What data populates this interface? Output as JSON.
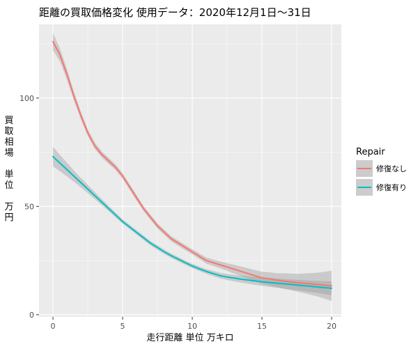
{
  "chart_data": {
    "type": "line",
    "title": "距離の買取価格変化 使用データ：2020年12月1日～31日",
    "xlabel": "走行距離 単位 万キロ",
    "ylabel_lines": [
      "買",
      "取",
      "相",
      "場",
      "",
      "単",
      "位",
      "",
      "万",
      "円"
    ],
    "xlim": [
      -1,
      20.7
    ],
    "ylim": [
      -1,
      134
    ],
    "x_ticks": [
      0,
      5,
      10,
      15,
      20
    ],
    "x_tick_labels": [
      "0",
      "5",
      "10",
      "15",
      "20"
    ],
    "y_ticks": [
      0,
      50,
      100
    ],
    "y_tick_labels": [
      "0",
      "50",
      "100"
    ],
    "grid": true,
    "legend": {
      "title": "Repair",
      "placement": "right"
    },
    "series": [
      {
        "name": "修復なし",
        "color": "#F8766D",
        "x": [
          0,
          0.5,
          1,
          1.5,
          2,
          2.5,
          3,
          3.5,
          4,
          4.5,
          5,
          5.5,
          6,
          6.5,
          7,
          7.5,
          8,
          8.5,
          9,
          9.5,
          10,
          10.5,
          11,
          11.5,
          12,
          12.5,
          13,
          13.5,
          14,
          14.5,
          15,
          15.5,
          16,
          16.5,
          17,
          17.5,
          18,
          18.5,
          19,
          19.5,
          20
        ],
        "y": [
          126,
          120,
          111,
          101,
          92,
          84,
          78,
          74,
          71,
          68,
          64,
          59,
          54,
          49,
          45,
          41,
          38,
          35,
          33,
          31,
          29,
          27,
          25,
          24,
          23,
          22,
          21,
          20,
          19,
          18,
          17,
          16.6,
          16,
          15.6,
          15.2,
          14.8,
          14.5,
          14.2,
          13.9,
          13.6,
          13.3
        ],
        "band_halfwidth": [
          4,
          3,
          2.5,
          2,
          1.8,
          1.6,
          1.5,
          1.4,
          1.4,
          1.3,
          1.3,
          1.3,
          1.3,
          1.2,
          1.2,
          1.2,
          1.2,
          1.2,
          1.2,
          1.2,
          1.2,
          1.3,
          1.4,
          1.5,
          1.6,
          1.8,
          2,
          2.2,
          2.4,
          2.6,
          2.8,
          3,
          3.2,
          3.5,
          3.8,
          4.1,
          4.5,
          5,
          5.5,
          6.2,
          7
        ]
      },
      {
        "name": "修復有り",
        "color": "#00BFC4",
        "x": [
          0,
          0.5,
          1,
          1.5,
          2,
          2.5,
          3,
          3.5,
          4,
          4.5,
          5,
          5.5,
          6,
          6.5,
          7,
          7.5,
          8,
          8.5,
          9,
          9.5,
          10,
          10.5,
          11,
          11.5,
          12,
          12.5,
          13,
          13.5,
          14,
          14.5,
          15,
          15.5,
          16,
          16.5,
          17,
          17.5,
          18,
          18.5,
          19,
          19.5,
          20
        ],
        "y": [
          73,
          70,
          67,
          64,
          61,
          58,
          55,
          52,
          49,
          46,
          43,
          40.5,
          38,
          35.5,
          33,
          31,
          29,
          27.2,
          25.6,
          24,
          22.5,
          21.2,
          20,
          19,
          18,
          17.4,
          16.9,
          16.4,
          16,
          15.6,
          15.2,
          14.9,
          14.6,
          14.3,
          14,
          13.7,
          13.4,
          13.1,
          12.8,
          12.5,
          12.2
        ],
        "band_halfwidth": [
          4.5,
          3.8,
          3.2,
          2.6,
          2.2,
          1.9,
          1.6,
          1.4,
          1.2,
          1.1,
          1,
          1,
          1,
          1,
          1,
          1,
          1,
          1,
          1,
          1,
          1,
          1,
          1.1,
          1.2,
          1.3,
          1.4,
          1.5,
          1.6,
          1.7,
          1.8,
          1.9,
          2,
          2.1,
          2.2,
          2.3,
          2.4,
          2.5,
          2.6,
          2.8,
          3,
          3.2
        ]
      }
    ],
    "colors": {
      "panel": "#EBEBEB",
      "grid_major": "#FFFFFF",
      "band": "#999999",
      "legend_key_bg": "#CCCCCC"
    }
  }
}
